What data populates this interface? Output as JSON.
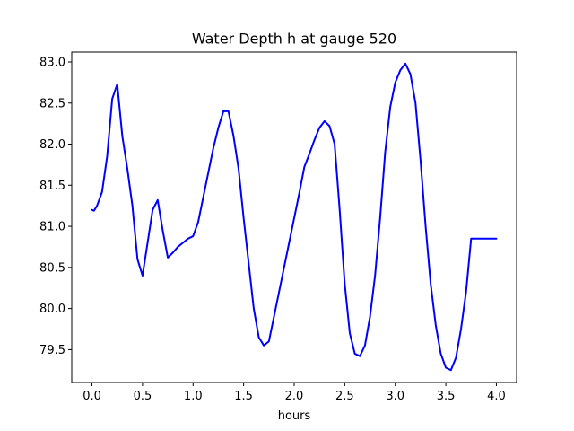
{
  "chart_data": {
    "type": "line",
    "title": "Water Depth h at gauge 520",
    "xlabel": "hours",
    "ylabel": "",
    "xlim": [
      -0.2,
      4.2
    ],
    "ylim": [
      79.1,
      83.12
    ],
    "grid": false,
    "legend": "none",
    "x_ticks": [
      0.0,
      0.5,
      1.0,
      1.5,
      2.0,
      2.5,
      3.0,
      3.5,
      4.0
    ],
    "x_tick_labels": [
      "0.0",
      "0.5",
      "1.0",
      "1.5",
      "2.0",
      "2.5",
      "3.0",
      "3.5",
      "4.0"
    ],
    "y_ticks": [
      79.5,
      80.0,
      80.5,
      81.0,
      81.5,
      82.0,
      82.5,
      83.0
    ],
    "y_tick_labels": [
      "79.5",
      "80.0",
      "80.5",
      "81.0",
      "81.5",
      "82.0",
      "82.5",
      "83.0"
    ],
    "series": [
      {
        "color": "#0000ff",
        "x": [
          0.0,
          0.02,
          0.05,
          0.1,
          0.15,
          0.2,
          0.25,
          0.3,
          0.35,
          0.4,
          0.45,
          0.5,
          0.55,
          0.6,
          0.65,
          0.7,
          0.75,
          0.8,
          0.85,
          0.9,
          0.95,
          1.0,
          1.05,
          1.1,
          1.15,
          1.2,
          1.25,
          1.3,
          1.35,
          1.4,
          1.45,
          1.5,
          1.55,
          1.6,
          1.65,
          1.7,
          1.75,
          1.8,
          1.85,
          1.9,
          1.95,
          2.0,
          2.05,
          2.1,
          2.15,
          2.2,
          2.25,
          2.3,
          2.35,
          2.4,
          2.45,
          2.5,
          2.55,
          2.6,
          2.65,
          2.7,
          2.75,
          2.8,
          2.85,
          2.9,
          2.95,
          3.0,
          3.05,
          3.1,
          3.15,
          3.2,
          3.25,
          3.3,
          3.35,
          3.4,
          3.45,
          3.5,
          3.55,
          3.6,
          3.65,
          3.7,
          3.75,
          3.8,
          3.85,
          3.9,
          3.95,
          4.0
        ],
        "values": [
          81.2,
          81.19,
          81.25,
          81.42,
          81.85,
          82.55,
          82.73,
          82.1,
          81.7,
          81.25,
          80.6,
          80.4,
          80.8,
          81.2,
          81.32,
          80.95,
          80.62,
          80.68,
          80.75,
          80.8,
          80.85,
          80.88,
          81.05,
          81.35,
          81.65,
          81.95,
          82.2,
          82.4,
          82.4,
          82.1,
          81.7,
          81.1,
          80.55,
          80.0,
          79.65,
          79.55,
          79.6,
          79.9,
          80.2,
          80.5,
          80.8,
          81.1,
          81.4,
          81.72,
          81.88,
          82.05,
          82.2,
          82.28,
          82.22,
          82.0,
          81.2,
          80.3,
          79.7,
          79.45,
          79.42,
          79.55,
          79.9,
          80.4,
          81.1,
          81.9,
          82.45,
          82.75,
          82.9,
          82.98,
          82.85,
          82.5,
          81.8,
          81.0,
          80.3,
          79.8,
          79.45,
          79.28,
          79.25,
          79.4,
          79.75,
          80.2,
          80.85,
          80.85,
          80.85,
          80.85,
          80.85,
          80.85
        ]
      }
    ]
  }
}
